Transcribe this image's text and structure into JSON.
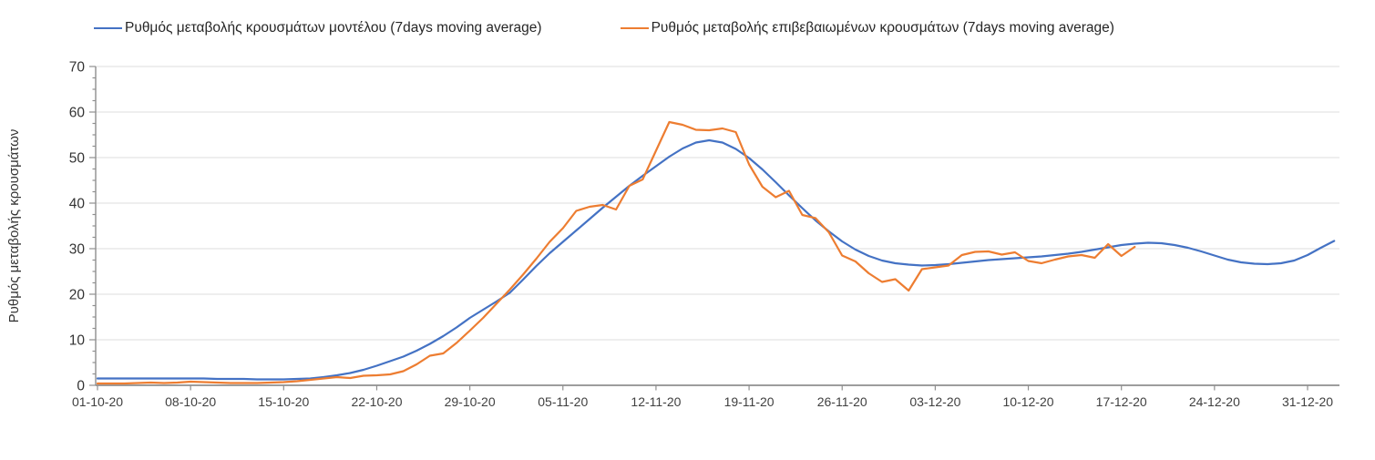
{
  "page": {
    "background_color": "#ffffff"
  },
  "legend": {
    "position": "top",
    "items": [
      {
        "label": "Ρυθμός μεταβολής κρουσμάτων μοντέλου (7days moving average)",
        "color": "#4472C4",
        "marker": "line-dash"
      },
      {
        "label": "Ρυθμός μεταβολής επιβεβαιωμένων κρουσμάτων (7days moving average)",
        "color": "#ED7D31",
        "marker": "line-dash"
      }
    ]
  },
  "chart_data": {
    "type": "line",
    "title": "",
    "xlabel": "",
    "ylabel": "Ρυθμός μεταβολής κρουσμάτων",
    "ylim": [
      0,
      70
    ],
    "y_tick_labels": [
      "0",
      "10",
      "20",
      "30",
      "40",
      "50",
      "60",
      "70"
    ],
    "y_major_step": 10,
    "y_minor_step": 2.5,
    "grid": "horizontal-only",
    "legend_position": "top",
    "x_tick_labels": [
      "01-10-20",
      "08-10-20",
      "15-10-20",
      "22-10-20",
      "29-10-20",
      "05-11-20",
      "12-11-20",
      "19-11-20",
      "26-11-20",
      "03-12-20",
      "10-12-20",
      "17-12-20",
      "24-12-20",
      "31-12-20"
    ],
    "x_days_between_ticks": 7,
    "points_are_daily": true,
    "series": [
      {
        "name": "Ρυθμός μεταβολής κρουσμάτων μοντέλου (7days moving average)",
        "color": "#4472C4",
        "start_date": "01-10-20",
        "end_date": "02-01-21",
        "values": [
          1.5,
          1.5,
          1.5,
          1.5,
          1.5,
          1.5,
          1.5,
          1.5,
          1.5,
          1.4,
          1.4,
          1.4,
          1.3,
          1.3,
          1.3,
          1.4,
          1.5,
          1.8,
          2.2,
          2.7,
          3.4,
          4.3,
          5.3,
          6.3,
          7.6,
          9.1,
          10.8,
          12.7,
          14.8,
          16.6,
          18.4,
          20.3,
          23.2,
          26.2,
          29.0,
          31.5,
          34.0,
          36.5,
          39.0,
          41.4,
          43.8,
          46.0,
          48.1,
          50.2,
          52.0,
          53.3,
          53.8,
          53.3,
          51.9,
          49.9,
          47.4,
          44.6,
          41.7,
          38.9,
          36.2,
          33.8,
          31.6,
          29.8,
          28.4,
          27.4,
          26.8,
          26.5,
          26.3,
          26.4,
          26.6,
          26.9,
          27.2,
          27.5,
          27.7,
          27.9,
          28.1,
          28.3,
          28.6,
          28.9,
          29.3,
          29.8,
          30.3,
          30.8,
          31.1,
          31.3,
          31.2,
          30.8,
          30.2,
          29.4,
          28.5,
          27.6,
          27.0,
          26.7,
          26.6,
          26.8,
          27.4,
          28.6,
          30.2,
          31.7
        ]
      },
      {
        "name": "Ρυθμός μεταβολής επιβεβαιωμένων κρουσμάτων (7days moving average)",
        "color": "#ED7D31",
        "start_date": "01-10-20",
        "end_date": "18-12-20",
        "values": [
          0.4,
          0.4,
          0.4,
          0.5,
          0.6,
          0.5,
          0.6,
          0.8,
          0.7,
          0.6,
          0.5,
          0.5,
          0.5,
          0.6,
          0.7,
          0.9,
          1.2,
          1.5,
          1.8,
          1.6,
          2.1,
          2.2,
          2.4,
          3.1,
          4.6,
          6.5,
          7.0,
          9.3,
          12.0,
          14.8,
          17.9,
          21.0,
          24.3,
          27.8,
          31.5,
          34.5,
          38.3,
          39.2,
          39.6,
          38.6,
          43.8,
          45.2,
          51.5,
          57.8,
          57.2,
          56.1,
          56.0,
          56.4,
          55.6,
          48.5,
          43.6,
          41.3,
          42.7,
          37.4,
          36.7,
          33.6,
          28.5,
          27.2,
          24.6,
          22.7,
          23.3,
          20.8,
          25.5,
          25.9,
          26.3,
          28.6,
          29.3,
          29.4,
          28.7,
          29.2,
          27.3,
          26.8,
          27.6,
          28.3,
          28.6,
          28.0,
          31.0,
          28.4,
          30.4
        ]
      }
    ],
    "style": {
      "axis_color": "#8f8f8f",
      "tick_color": "#8f8f8f",
      "gridline_color": "#dcdcdc",
      "line_width": 2.2
    }
  }
}
